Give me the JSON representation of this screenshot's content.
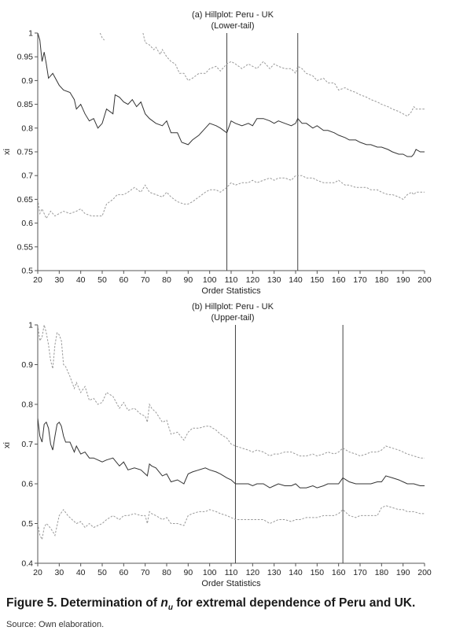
{
  "figure": {
    "caption_prefix": "Figure 5. Determination of ",
    "caption_var": "n",
    "caption_sub": "u",
    "caption_suffix": " for extremal dependence of Peru and UK.",
    "source": "Source: Own elaboration."
  },
  "chart_data": [
    {
      "type": "line",
      "title": "(a) Hillplot: Peru - UK",
      "subtitle": "(Lower-tail)",
      "xlabel": "Order Statistics",
      "ylabel": "xi",
      "xlim": [
        20,
        200
      ],
      "ylim": [
        0.5,
        1.0
      ],
      "xticks": [
        "20",
        "30",
        "40",
        "50",
        "60",
        "70",
        "80",
        "90",
        "100",
        "110",
        "120",
        "130",
        "140",
        "150",
        "160",
        "170",
        "180",
        "190",
        "200"
      ],
      "yticks": [
        "0.5",
        "0.55",
        "0.6",
        "0.65",
        "0.7",
        "0.75",
        "0.8",
        "0.85",
        "0.9",
        "0.95",
        "1"
      ],
      "grid": false,
      "vlines": [
        108,
        141
      ],
      "series": [
        {
          "style": "solid",
          "x": [
            20,
            21,
            22,
            23,
            24,
            25,
            27,
            30,
            32,
            35,
            37,
            38,
            40,
            42,
            44,
            46,
            48,
            50,
            52,
            55,
            56,
            58,
            60,
            62,
            64,
            66,
            68,
            70,
            72,
            75,
            78,
            80,
            82,
            85,
            87,
            90,
            92,
            95,
            97,
            100,
            103,
            105,
            108,
            110,
            112,
            115,
            118,
            120,
            122,
            125,
            128,
            130,
            132,
            135,
            138,
            140,
            141,
            143,
            145,
            148,
            150,
            153,
            155,
            158,
            160,
            163,
            165,
            168,
            170,
            173,
            175,
            178,
            180,
            183,
            185,
            188,
            190,
            192,
            194,
            195,
            196,
            198,
            200
          ],
          "y": [
            1.0,
            0.985,
            0.94,
            0.96,
            0.935,
            0.905,
            0.915,
            0.89,
            0.88,
            0.875,
            0.86,
            0.84,
            0.85,
            0.83,
            0.815,
            0.82,
            0.8,
            0.81,
            0.84,
            0.83,
            0.87,
            0.865,
            0.855,
            0.85,
            0.86,
            0.845,
            0.855,
            0.83,
            0.82,
            0.81,
            0.805,
            0.815,
            0.79,
            0.79,
            0.77,
            0.765,
            0.775,
            0.785,
            0.795,
            0.81,
            0.805,
            0.8,
            0.79,
            0.815,
            0.81,
            0.805,
            0.81,
            0.805,
            0.82,
            0.82,
            0.815,
            0.81,
            0.815,
            0.81,
            0.805,
            0.81,
            0.82,
            0.81,
            0.81,
            0.8,
            0.805,
            0.795,
            0.795,
            0.79,
            0.785,
            0.78,
            0.775,
            0.775,
            0.77,
            0.765,
            0.765,
            0.76,
            0.76,
            0.755,
            0.75,
            0.745,
            0.745,
            0.74,
            0.74,
            0.745,
            0.755,
            0.75,
            0.75
          ]
        },
        {
          "style": "dashed",
          "x": [
            20,
            21,
            22,
            24,
            26,
            28,
            30,
            32,
            35,
            38,
            40,
            42,
            45,
            48,
            50,
            52,
            55,
            57,
            60,
            62,
            65,
            68,
            70,
            72,
            75,
            78,
            80,
            82,
            85,
            88,
            90,
            92,
            95,
            98,
            100,
            103,
            105,
            108,
            110,
            112,
            115,
            118,
            120,
            122,
            125,
            128,
            130,
            132,
            135,
            138,
            140,
            141,
            143,
            145,
            148,
            150,
            153,
            155,
            158,
            160,
            163,
            165,
            168,
            170,
            173,
            175,
            178,
            180,
            183,
            185,
            188,
            190,
            192,
            194,
            195,
            196,
            198,
            200
          ],
          "y": [
            0.65,
            0.62,
            0.63,
            0.61,
            0.625,
            0.615,
            0.62,
            0.625,
            0.62,
            0.625,
            0.63,
            0.62,
            0.615,
            0.615,
            0.615,
            0.64,
            0.65,
            0.66,
            0.66,
            0.665,
            0.675,
            0.665,
            0.68,
            0.665,
            0.66,
            0.655,
            0.665,
            0.655,
            0.645,
            0.64,
            0.64,
            0.645,
            0.655,
            0.665,
            0.67,
            0.67,
            0.665,
            0.675,
            0.685,
            0.68,
            0.685,
            0.685,
            0.69,
            0.685,
            0.69,
            0.695,
            0.69,
            0.695,
            0.695,
            0.69,
            0.7,
            0.7,
            0.7,
            0.695,
            0.695,
            0.69,
            0.685,
            0.685,
            0.685,
            0.69,
            0.68,
            0.68,
            0.675,
            0.675,
            0.675,
            0.67,
            0.67,
            0.665,
            0.66,
            0.66,
            0.655,
            0.65,
            0.66,
            0.665,
            0.66,
            0.665,
            0.665,
            0.665
          ]
        },
        {
          "style": "dashed",
          "x": [
            49,
            50,
            51
          ],
          "y": [
            1.0,
            0.99,
            0.985
          ]
        },
        {
          "style": "dashed",
          "x": [
            69,
            70,
            72,
            74,
            75,
            77,
            78,
            80,
            82,
            84,
            86,
            88,
            90,
            92,
            95,
            98,
            100,
            103,
            105,
            108,
            110,
            112,
            115,
            118,
            120,
            122,
            125,
            128,
            130,
            132,
            135,
            138,
            140,
            141,
            143,
            145,
            148,
            150,
            153,
            155,
            158,
            160,
            163,
            165,
            168,
            170,
            173,
            175,
            178,
            180,
            183,
            185,
            188,
            190,
            192,
            194,
            195,
            196,
            198,
            200
          ],
          "y": [
            1.0,
            0.98,
            0.975,
            0.965,
            0.97,
            0.955,
            0.965,
            0.95,
            0.94,
            0.935,
            0.915,
            0.915,
            0.9,
            0.905,
            0.915,
            0.915,
            0.925,
            0.93,
            0.92,
            0.935,
            0.94,
            0.935,
            0.925,
            0.935,
            0.93,
            0.925,
            0.94,
            0.925,
            0.935,
            0.93,
            0.925,
            0.925,
            0.915,
            0.93,
            0.925,
            0.915,
            0.91,
            0.9,
            0.905,
            0.895,
            0.895,
            0.88,
            0.885,
            0.88,
            0.875,
            0.87,
            0.865,
            0.86,
            0.855,
            0.85,
            0.845,
            0.84,
            0.835,
            0.83,
            0.825,
            0.835,
            0.845,
            0.84,
            0.84,
            0.84
          ]
        }
      ]
    },
    {
      "type": "line",
      "title": "(b) Hillplot: Peru - UK",
      "subtitle": "(Upper-tail)",
      "xlabel": "Order Statistics",
      "ylabel": "xi",
      "xlim": [
        20,
        200
      ],
      "ylim": [
        0.4,
        1.0
      ],
      "xticks": [
        "20",
        "30",
        "40",
        "50",
        "60",
        "70",
        "80",
        "90",
        "100",
        "110",
        "120",
        "130",
        "140",
        "150",
        "160",
        "170",
        "180",
        "190",
        "200"
      ],
      "yticks": [
        "0.4",
        "0.5",
        "0.6",
        "0.7",
        "0.8",
        "0.9",
        "1"
      ],
      "grid": false,
      "vlines": [
        112,
        162
      ],
      "series": [
        {
          "style": "solid",
          "x": [
            20,
            21,
            22,
            23,
            24,
            25,
            26,
            27,
            28,
            29,
            30,
            31,
            32,
            33,
            35,
            37,
            38,
            40,
            42,
            44,
            46,
            48,
            50,
            52,
            55,
            58,
            60,
            62,
            65,
            68,
            70,
            71,
            72,
            73,
            75,
            78,
            80,
            82,
            85,
            88,
            90,
            92,
            95,
            98,
            100,
            103,
            105,
            108,
            110,
            112,
            115,
            118,
            120,
            122,
            125,
            128,
            130,
            132,
            135,
            138,
            140,
            142,
            145,
            148,
            150,
            153,
            155,
            158,
            160,
            162,
            165,
            168,
            170,
            173,
            175,
            178,
            180,
            182,
            185,
            188,
            190,
            192,
            195,
            198,
            200
          ],
          "y": [
            0.765,
            0.72,
            0.705,
            0.75,
            0.755,
            0.74,
            0.7,
            0.685,
            0.72,
            0.75,
            0.755,
            0.745,
            0.72,
            0.705,
            0.705,
            0.68,
            0.695,
            0.675,
            0.68,
            0.665,
            0.665,
            0.66,
            0.655,
            0.66,
            0.665,
            0.645,
            0.655,
            0.635,
            0.64,
            0.635,
            0.625,
            0.62,
            0.65,
            0.645,
            0.64,
            0.62,
            0.625,
            0.605,
            0.61,
            0.6,
            0.625,
            0.63,
            0.635,
            0.64,
            0.635,
            0.63,
            0.625,
            0.615,
            0.61,
            0.6,
            0.6,
            0.6,
            0.595,
            0.6,
            0.6,
            0.59,
            0.595,
            0.6,
            0.595,
            0.595,
            0.6,
            0.59,
            0.59,
            0.595,
            0.59,
            0.595,
            0.6,
            0.6,
            0.6,
            0.615,
            0.605,
            0.6,
            0.6,
            0.6,
            0.6,
            0.605,
            0.605,
            0.62,
            0.615,
            0.61,
            0.605,
            0.6,
            0.6,
            0.595,
            0.595
          ]
        },
        {
          "style": "dashed",
          "x": [
            20,
            21,
            22,
            23,
            24,
            25,
            27,
            28,
            30,
            32,
            34,
            36,
            38,
            40,
            42,
            44,
            46,
            48,
            50,
            52,
            55,
            58,
            60,
            62,
            65,
            68,
            70,
            71,
            72,
            73,
            75,
            78,
            80,
            82,
            85,
            88,
            90,
            92,
            95,
            98,
            100,
            103,
            105,
            108,
            110,
            112,
            115,
            118,
            120,
            122,
            125,
            128,
            130,
            132,
            135,
            138,
            140,
            142,
            145,
            148,
            150,
            153,
            155,
            158,
            160,
            162,
            165,
            168,
            170,
            173,
            175,
            178,
            180,
            182,
            185,
            188,
            190,
            192,
            195,
            198,
            200
          ],
          "y": [
            0.5,
            0.47,
            0.46,
            0.49,
            0.5,
            0.495,
            0.48,
            0.47,
            0.52,
            0.535,
            0.52,
            0.51,
            0.5,
            0.505,
            0.49,
            0.5,
            0.49,
            0.495,
            0.5,
            0.51,
            0.52,
            0.51,
            0.52,
            0.52,
            0.525,
            0.52,
            0.52,
            0.5,
            0.53,
            0.525,
            0.52,
            0.51,
            0.515,
            0.5,
            0.5,
            0.495,
            0.52,
            0.525,
            0.53,
            0.53,
            0.535,
            0.53,
            0.525,
            0.52,
            0.515,
            0.51,
            0.51,
            0.51,
            0.51,
            0.51,
            0.51,
            0.5,
            0.505,
            0.51,
            0.51,
            0.505,
            0.51,
            0.51,
            0.515,
            0.515,
            0.515,
            0.52,
            0.52,
            0.52,
            0.525,
            0.535,
            0.52,
            0.515,
            0.52,
            0.52,
            0.52,
            0.52,
            0.54,
            0.545,
            0.54,
            0.535,
            0.535,
            0.53,
            0.53,
            0.525,
            0.525
          ]
        },
        {
          "style": "dashed",
          "x": [
            20,
            21,
            22,
            23,
            24,
            25,
            26,
            27,
            28,
            29,
            30,
            31,
            32,
            33,
            35,
            37,
            38,
            40,
            42,
            44,
            46,
            48,
            50,
            52,
            55,
            58,
            60,
            62,
            65,
            68,
            70,
            71,
            72,
            73,
            75,
            78,
            80,
            82,
            85,
            88,
            90,
            92,
            95,
            98,
            100,
            103,
            105,
            108,
            110,
            112,
            115,
            118,
            120,
            122,
            125,
            128,
            130,
            132,
            135,
            138,
            140,
            142,
            145,
            148,
            150,
            153,
            155,
            158,
            160,
            162,
            165,
            168,
            170,
            173,
            175,
            178,
            180,
            182,
            185,
            188,
            190,
            192,
            195,
            198,
            200
          ],
          "y": [
            1.0,
            0.96,
            0.97,
            1.0,
            0.98,
            0.95,
            0.91,
            0.89,
            0.95,
            0.98,
            0.975,
            0.96,
            0.9,
            0.895,
            0.87,
            0.84,
            0.855,
            0.83,
            0.845,
            0.81,
            0.815,
            0.8,
            0.805,
            0.83,
            0.82,
            0.79,
            0.805,
            0.785,
            0.79,
            0.775,
            0.77,
            0.755,
            0.8,
            0.79,
            0.78,
            0.755,
            0.76,
            0.725,
            0.73,
            0.71,
            0.73,
            0.74,
            0.74,
            0.745,
            0.745,
            0.735,
            0.725,
            0.715,
            0.7,
            0.695,
            0.69,
            0.685,
            0.68,
            0.685,
            0.68,
            0.67,
            0.675,
            0.675,
            0.68,
            0.68,
            0.675,
            0.67,
            0.67,
            0.675,
            0.67,
            0.675,
            0.68,
            0.675,
            0.68,
            0.69,
            0.68,
            0.675,
            0.67,
            0.675,
            0.68,
            0.68,
            0.685,
            0.695,
            0.69,
            0.685,
            0.68,
            0.675,
            0.67,
            0.665,
            0.665
          ]
        }
      ]
    }
  ]
}
